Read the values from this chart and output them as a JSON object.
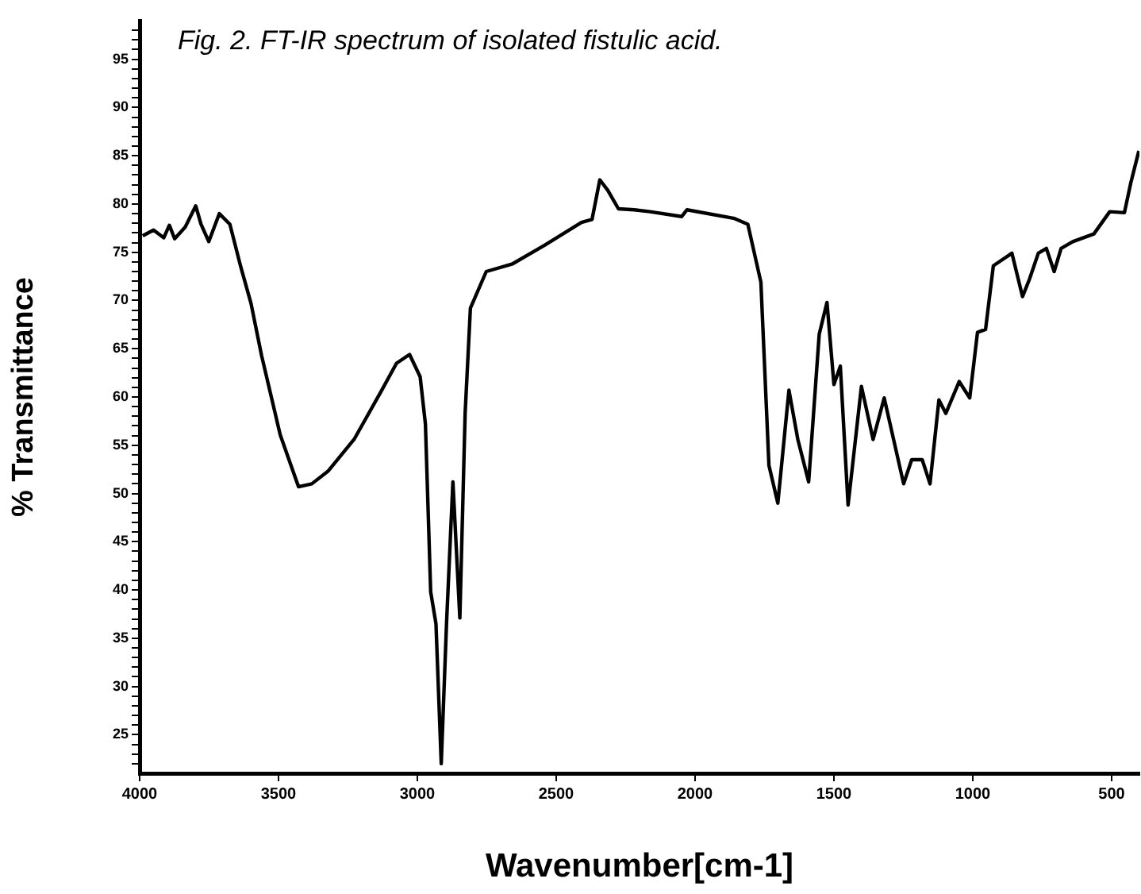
{
  "chart_data": {
    "type": "line",
    "title": "Fig. 2. FT-IR spectrum of isolated fistulic acid.",
    "xlabel": "Wavenumber[cm-1]",
    "ylabel": "% Transmittance",
    "x": [
      3989,
      3950,
      3913,
      3893,
      3874,
      3836,
      3798,
      3779,
      3751,
      3713,
      3675,
      3636,
      3599,
      3561,
      3494,
      3428,
      3380,
      3322,
      3228,
      3132,
      3075,
      3028,
      2990,
      2971,
      2952,
      2933,
      2914,
      2895,
      2872,
      2847,
      2828,
      2809,
      2752,
      2657,
      2543,
      2409,
      2371,
      2343,
      2314,
      2276,
      2219,
      2162,
      2048,
      2029,
      1858,
      1810,
      1763,
      1734,
      1702,
      1662,
      1630,
      1591,
      1553,
      1525,
      1500,
      1477,
      1449,
      1401,
      1359,
      1319,
      1249,
      1220,
      1182,
      1154,
      1122,
      1097,
      1049,
      1011,
      983,
      954,
      926,
      859,
      821,
      796,
      764,
      735,
      707,
      682,
      640,
      564,
      507,
      454,
      431,
      402
    ],
    "values": [
      76.7,
      77.3,
      76.5,
      77.8,
      76.4,
      77.6,
      79.8,
      77.9,
      76.1,
      79.0,
      77.9,
      73.5,
      69.7,
      64.3,
      56.1,
      50.7,
      51.0,
      52.3,
      55.6,
      60.5,
      63.5,
      64.4,
      62.1,
      57.2,
      39.8,
      36.5,
      22,
      36.5,
      51.2,
      37.1,
      58.3,
      69.2,
      73.0,
      73.8,
      75.7,
      78.1,
      78.4,
      82.5,
      81.4,
      79.5,
      79.4,
      79.2,
      78.7,
      79.4,
      78.5,
      77.9,
      71.9,
      52.9,
      49.0,
      60.7,
      55.6,
      51.2,
      66.5,
      69.8,
      61.3,
      63.2,
      48.8,
      61.1,
      55.6,
      59.9,
      51.0,
      53.5,
      53.5,
      51.0,
      59.7,
      58.3,
      61.6,
      59.9,
      66.7,
      67.0,
      73.6,
      74.9,
      70.4,
      72.2,
      74.9,
      75.4,
      73.0,
      75.4,
      76.1,
      76.9,
      79.2,
      79.1,
      82.2,
      85.5
    ],
    "color": "#000000",
    "marker": "none",
    "line_style": "solid",
    "legend": false,
    "xlim": [
      4000,
      400
    ],
    "xticks": [
      4000,
      3500,
      3000,
      2500,
      2000,
      1500,
      1000,
      500
    ],
    "ylim": [
      21,
      99
    ],
    "yticks": [
      {
        "value": 22,
        "label": null
      },
      {
        "value": 23,
        "label": null
      },
      {
        "value": 24,
        "label": null
      },
      25,
      {
        "value": 26,
        "label": null
      },
      {
        "value": 27,
        "label": null
      },
      {
        "value": 28,
        "label": null
      },
      {
        "value": 29,
        "label": null
      },
      30,
      {
        "value": 31,
        "label": null
      },
      {
        "value": 32,
        "label": null
      },
      {
        "value": 33,
        "label": null
      },
      {
        "value": 34,
        "label": null
      },
      35,
      {
        "value": 36,
        "label": null
      },
      {
        "value": 37,
        "label": null
      },
      {
        "value": 38,
        "label": null
      },
      {
        "value": 39,
        "label": null
      },
      40,
      {
        "value": 41,
        "label": null
      },
      {
        "value": 42,
        "label": null
      },
      {
        "value": 43,
        "label": null
      },
      {
        "value": 44,
        "label": null
      },
      45,
      {
        "value": 46,
        "label": null
      },
      {
        "value": 47,
        "label": null
      },
      {
        "value": 48,
        "label": null
      },
      {
        "value": 49,
        "label": null
      },
      50,
      {
        "value": 51,
        "label": null
      },
      {
        "value": 52,
        "label": null
      },
      {
        "value": 53,
        "label": null
      },
      {
        "value": 54,
        "label": null
      },
      55,
      {
        "value": 56,
        "label": null
      },
      {
        "value": 57,
        "label": null
      },
      {
        "value": 58,
        "label": null
      },
      {
        "value": 59,
        "label": null
      },
      60,
      {
        "value": 61,
        "label": null
      },
      {
        "value": 62,
        "label": null
      },
      {
        "value": 63,
        "label": null
      },
      {
        "value": 64,
        "label": null
      },
      65,
      {
        "value": 66,
        "label": null
      },
      {
        "value": 67,
        "label": null
      },
      {
        "value": 68,
        "label": null
      },
      {
        "value": 69,
        "label": null
      },
      70,
      {
        "value": 71,
        "label": null
      },
      {
        "value": 72,
        "label": null
      },
      {
        "value": 73,
        "label": null
      },
      {
        "value": 74,
        "label": null
      },
      75,
      {
        "value": 76,
        "label": null
      },
      {
        "value": 77,
        "label": null
      },
      {
        "value": 78,
        "label": null
      },
      {
        "value": 79,
        "label": null
      },
      80,
      {
        "value": 81,
        "label": null
      },
      {
        "value": 82,
        "label": null
      },
      {
        "value": 83,
        "label": null
      },
      {
        "value": 84,
        "label": null
      },
      85,
      {
        "value": 86,
        "label": null
      },
      {
        "value": 87,
        "label": null
      },
      {
        "value": 88,
        "label": null
      },
      {
        "value": 89,
        "label": null
      },
      90,
      {
        "value": 91,
        "label": null
      },
      {
        "value": 92,
        "label": null
      },
      {
        "value": 93,
        "label": null
      },
      {
        "value": 94,
        "label": null
      },
      95,
      {
        "value": 96,
        "label": null
      },
      {
        "value": 97,
        "label": null
      },
      {
        "value": 98,
        "label": null
      }
    ]
  }
}
